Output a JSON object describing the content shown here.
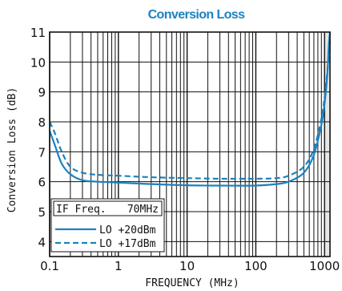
{
  "chart_data": {
    "type": "line",
    "title": "Conversion Loss",
    "xlabel": "FREQUENCY (MHz)",
    "ylabel": "Conversion Loss (dB)",
    "x_scale": "log",
    "xlim": [
      0.1,
      1200
    ],
    "ylim": [
      3.5,
      11
    ],
    "x_ticks": [
      {
        "value": 0.1,
        "label": "0.1"
      },
      {
        "value": 1,
        "label": "1"
      },
      {
        "value": 10,
        "label": "10"
      },
      {
        "value": 100,
        "label": "100"
      },
      {
        "value": 1000,
        "label": "1000"
      }
    ],
    "y_ticks": [
      4,
      5,
      6,
      7,
      8,
      9,
      10,
      11
    ],
    "grid": true,
    "shaded_region": {
      "x_from": 1000,
      "x_to": 1200,
      "color": "#e6e6e6"
    },
    "legend": {
      "position": "bottom-left",
      "header_label": "IF Freq.",
      "header_value": "70MHz"
    },
    "series": [
      {
        "name": "LO +20dBm",
        "color": "#1a82c0",
        "dash": "solid",
        "points": [
          [
            0.1,
            7.7
          ],
          [
            0.12,
            7.2
          ],
          [
            0.15,
            6.6
          ],
          [
            0.2,
            6.25
          ],
          [
            0.3,
            6.05
          ],
          [
            0.5,
            6.0
          ],
          [
            1,
            5.97
          ],
          [
            3,
            5.92
          ],
          [
            10,
            5.88
          ],
          [
            30,
            5.87
          ],
          [
            100,
            5.87
          ],
          [
            200,
            5.92
          ],
          [
            300,
            6.0
          ],
          [
            500,
            6.3
          ],
          [
            700,
            6.9
          ],
          [
            900,
            7.9
          ],
          [
            1000,
            8.6
          ],
          [
            1100,
            9.6
          ],
          [
            1150,
            10.5
          ],
          [
            1200,
            11.0
          ]
        ]
      },
      {
        "name": "LO +17dBm",
        "color": "#1a82c0",
        "dash": "dashed",
        "points": [
          [
            0.1,
            8.0
          ],
          [
            0.12,
            7.6
          ],
          [
            0.15,
            7.0
          ],
          [
            0.2,
            6.5
          ],
          [
            0.3,
            6.3
          ],
          [
            0.5,
            6.23
          ],
          [
            1,
            6.2
          ],
          [
            3,
            6.15
          ],
          [
            10,
            6.12
          ],
          [
            30,
            6.1
          ],
          [
            100,
            6.1
          ],
          [
            200,
            6.12
          ],
          [
            300,
            6.2
          ],
          [
            500,
            6.5
          ],
          [
            700,
            7.1
          ],
          [
            900,
            8.1
          ],
          [
            1000,
            8.8
          ],
          [
            1100,
            9.7
          ],
          [
            1200,
            10.7
          ]
        ]
      }
    ]
  }
}
